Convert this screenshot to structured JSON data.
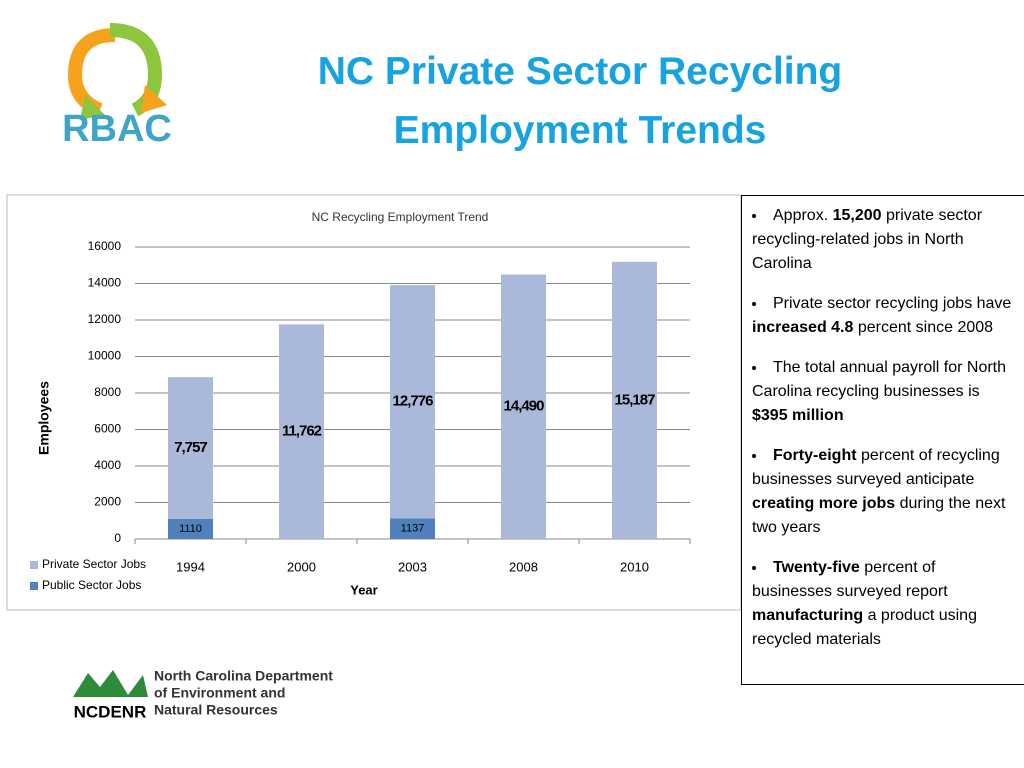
{
  "title": "NC Private Sector Recycling Employment Trends",
  "logo_text": "RBAC",
  "chart_data": {
    "type": "stacked_bar",
    "title": "NC Recycling Employment Trend",
    "x_label": "Year",
    "y_label": "Employees",
    "categories": [
      "1994",
      "2000",
      "2003",
      "2008",
      "2010"
    ],
    "series": [
      {
        "name": "Public Sector Jobs",
        "color": "#4f81bd",
        "values": [
          1110,
          null,
          1137,
          null,
          null
        ]
      },
      {
        "name": "Private Sector Jobs",
        "color": "#aab8d9",
        "values": [
          7757,
          11762,
          12776,
          14490,
          15187
        ],
        "value_labels": [
          "7,757",
          "11,762",
          "12,776",
          "14,490",
          "15,187"
        ]
      }
    ],
    "ylim": [
      0,
      16000
    ],
    "yticks": [
      0,
      2000,
      4000,
      6000,
      8000,
      10000,
      12000,
      14000,
      16000
    ],
    "grid": true,
    "legend": "bottom-left"
  },
  "bullets": [
    [
      {
        "text": "Approx. "
      },
      {
        "text": "15,200",
        "bold": true
      },
      {
        "text": " private sector recycling-related jobs in North Carolina"
      }
    ],
    [
      {
        "text": "Private sector recycling jobs have "
      },
      {
        "text": "increased 4.8",
        "bold": true
      },
      {
        "text": " percent since 2008"
      }
    ],
    [
      {
        "text": "The total annual payroll for North Carolina recycling businesses is "
      },
      {
        "text": "$395 million",
        "bold": true
      }
    ],
    [
      {
        "text": "Forty-eight",
        "bold": true
      },
      {
        "text": " percent of recycling businesses surveyed anticipate "
      },
      {
        "text": "creating more jobs",
        "bold": true
      },
      {
        "text": " during the next two years"
      }
    ],
    [
      {
        "text": "Twenty-five",
        "bold": true
      },
      {
        "text": " percent of businesses surveyed report "
      },
      {
        "text": "manufacturing",
        "bold": true
      },
      {
        "text": " a product using recycled materials"
      }
    ]
  ],
  "footer_logo": {
    "lines": [
      "North Carolina Department",
      "of Environment and",
      "Natural Resources"
    ],
    "acronym": "NCDENR"
  }
}
